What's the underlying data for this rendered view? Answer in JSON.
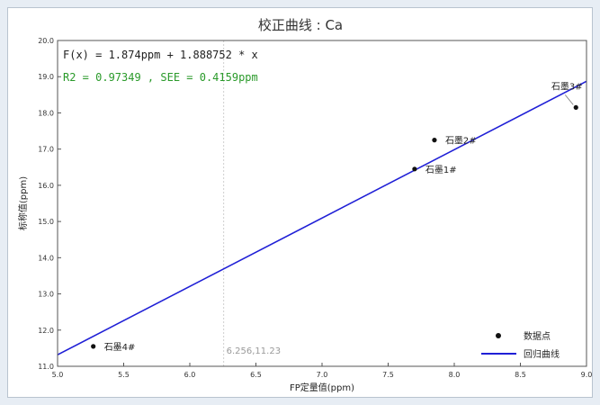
{
  "chart_data": {
    "type": "scatter",
    "title": "校正曲线 : Ca",
    "xlabel": "FP定量值(ppm)",
    "ylabel": "标称值(ppm)",
    "xlim": [
      5.0,
      9.0
    ],
    "ylim": [
      11.0,
      20.0
    ],
    "x_ticks": [
      "5.0",
      "5.5",
      "6.0",
      "6.5",
      "7.0",
      "7.5",
      "8.0",
      "8.5",
      "9.0"
    ],
    "y_ticks": [
      "11.0",
      "12.0",
      "13.0",
      "14.0",
      "15.0",
      "16.0",
      "17.0",
      "18.0",
      "19.0",
      "20.0"
    ],
    "grid": false,
    "formula_text": "F(x) = 1.874ppm + 1.888752 * x",
    "stats_text": "R2 = 0.97349 , SEE = 0.4159ppm",
    "fit": {
      "intercept": 1.874,
      "slope": 1.888752
    },
    "points": [
      {
        "label": "石墨1#",
        "x": 7.7,
        "y": 16.45
      },
      {
        "label": "石墨2#",
        "x": 7.85,
        "y": 17.25
      },
      {
        "label": "石墨3#",
        "x": 8.92,
        "y": 18.15
      },
      {
        "label": "石墨4#",
        "x": 5.27,
        "y": 11.55
      }
    ],
    "cursor": {
      "x": 6.256,
      "label": "6.256,11.23"
    },
    "legend": {
      "position": "bottom-right",
      "points_label": "数据点",
      "fit_label": "回归曲线"
    },
    "colors": {
      "fit_line": "#1f1fd6",
      "formula": "#222222",
      "stats": "#2a9a2a",
      "points": "#111111",
      "cursor": "#cfcfcf"
    }
  }
}
